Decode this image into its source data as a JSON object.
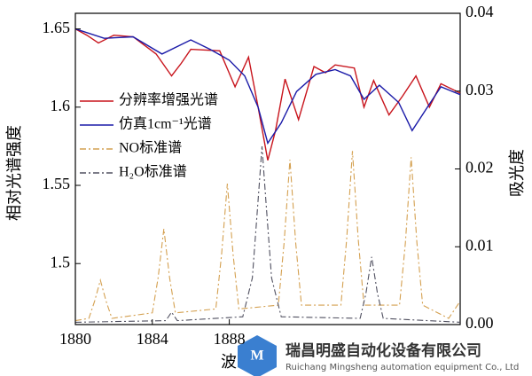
{
  "chart_data": {
    "type": "line",
    "xlabel": "波",
    "ylabel": "相对光谱强度",
    "y2label": "吸光度",
    "xlim": [
      1880,
      1900
    ],
    "xticks": [
      1880,
      1884,
      1888
    ],
    "ylim": [
      1.461,
      1.66
    ],
    "yticks": [
      1.5,
      1.55,
      1.6,
      1.65
    ],
    "y2lim": [
      0,
      0.04
    ],
    "y2ticks": [
      {
        "value": 0,
        "label": "0.00"
      },
      0.01,
      0.02,
      0.03,
      0.04
    ],
    "legend": "upper left",
    "series": [
      {
        "name": "分辨率增强光谱",
        "color": "#c8141c",
        "style": "solid",
        "x": [
          1880,
          1880.6,
          1881.2,
          1882,
          1883,
          1884.2,
          1885,
          1885.5,
          1886,
          1887.5,
          1888.3,
          1889,
          1889.5,
          1890,
          1890.4,
          1890.9,
          1891.6,
          1892.4,
          1893,
          1893.5,
          1894.5,
          1895,
          1895.5,
          1896.3,
          1897,
          1897.7,
          1898.4,
          1899,
          1900
        ],
        "values": [
          1.65,
          1.646,
          1.641,
          1.646,
          1.645,
          1.634,
          1.62,
          1.628,
          1.637,
          1.636,
          1.613,
          1.632,
          1.6,
          1.566,
          1.585,
          1.618,
          1.592,
          1.626,
          1.622,
          1.627,
          1.625,
          1.6,
          1.617,
          1.595,
          1.607,
          1.62,
          1.6,
          1.615,
          1.609
        ]
      },
      {
        "name": "仿真1cm⁻¹光谱",
        "color": "#1a1aa8",
        "style": "solid",
        "x": [
          1880,
          1881.5,
          1883,
          1884.5,
          1886,
          1887,
          1888,
          1888.8,
          1889.5,
          1890,
          1890.7,
          1891.5,
          1892.5,
          1893.5,
          1894.3,
          1895,
          1895.8,
          1896.8,
          1897.5,
          1898.3,
          1899,
          1900
        ],
        "values": [
          1.65,
          1.644,
          1.645,
          1.634,
          1.643,
          1.637,
          1.63,
          1.62,
          1.6,
          1.577,
          1.59,
          1.61,
          1.621,
          1.624,
          1.62,
          1.605,
          1.614,
          1.603,
          1.585,
          1.6,
          1.613,
          1.608
        ]
      },
      {
        "name": "NO标准谱",
        "color": "#d4a050",
        "style": "dashdot",
        "axis": "y2",
        "x": [
          1880,
          1880.7,
          1881,
          1881.3,
          1881.6,
          1881.9,
          1884,
          1884.3,
          1884.6,
          1884.9,
          1885.2,
          1887.3,
          1887.6,
          1887.9,
          1888.2,
          1888.5,
          1890.55,
          1890.85,
          1891.15,
          1891.45,
          1891.75,
          1893.8,
          1894.1,
          1894.4,
          1894.7,
          1895,
          1896.85,
          1897.15,
          1897.45,
          1897.75,
          1898.05,
          1899.4,
          1900
        ],
        "values": [
          0.0005,
          0.0008,
          0.003,
          0.0057,
          0.003,
          0.0008,
          0.0015,
          0.006,
          0.0123,
          0.006,
          0.0015,
          0.002,
          0.009,
          0.0181,
          0.009,
          0.002,
          0.0025,
          0.0105,
          0.0212,
          0.0105,
          0.0025,
          0.0025,
          0.011,
          0.0223,
          0.011,
          0.0025,
          0.0025,
          0.0105,
          0.0215,
          0.0105,
          0.0025,
          0.0008,
          0.003
        ]
      },
      {
        "name": "H₂O标准谱",
        "color": "#505060",
        "style": "dashdot",
        "axis": "y2",
        "x": [
          1880,
          1884.7,
          1885,
          1885.3,
          1888.7,
          1889.2,
          1889.5,
          1889.7,
          1889.9,
          1890.2,
          1890.7,
          1894.8,
          1895.1,
          1895.4,
          1895.7,
          1896,
          1900
        ],
        "values": [
          0.0003,
          0.0005,
          0.0016,
          0.0005,
          0.001,
          0.006,
          0.016,
          0.0229,
          0.016,
          0.006,
          0.001,
          0.0008,
          0.004,
          0.0087,
          0.004,
          0.0008,
          0.0003
        ]
      }
    ],
    "watermark": {
      "company": "瑞昌明盛自动化设备有限公司",
      "company_en": "Ruichang Mingsheng automation equipment Co., Ltd"
    }
  }
}
